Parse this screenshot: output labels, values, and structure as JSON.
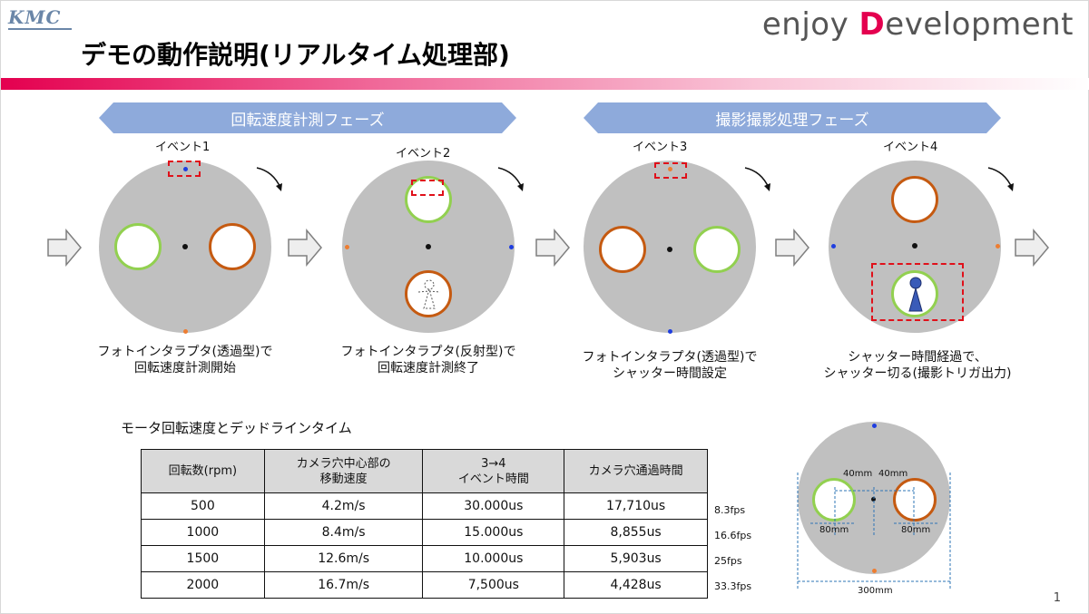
{
  "header": {
    "logo": "KMC",
    "brand_prefix": "enjoy ",
    "brand_d": "D",
    "brand_suffix": "evelopment",
    "title": "デモの動作説明(リアルタイム処理部)"
  },
  "phases": [
    "回転速度計測フェーズ",
    "撮影撮影処理フェーズ"
  ],
  "events": [
    {
      "label": "イベント1",
      "caption1": "フォトインタラプタ(透過型)で",
      "caption2": "回転速度計測開始"
    },
    {
      "label": "イベント2",
      "caption1": "フォトインタラプタ(反射型)で",
      "caption2": "回転速度計測終了"
    },
    {
      "label": "イベント3",
      "caption1": "フォトインタラプタ(透過型)で",
      "caption2": "シャッター時間設定"
    },
    {
      "label": "イベント4",
      "caption1": "シャッター時間経過で、",
      "caption2": "シャッター切る(撮影トリガ出力)"
    }
  ],
  "table": {
    "subtitle": "モータ回転速度とデッドラインタイム",
    "headers": [
      [
        "回転数(rpm)",
        ""
      ],
      [
        "カメラ穴中心部の",
        "移動速度"
      ],
      [
        "3→4",
        "イベント時間"
      ],
      [
        "カメラ穴通過時間",
        ""
      ]
    ],
    "rows": [
      {
        "rpm": "500",
        "speed": "4.2m/s",
        "event": "30.000us",
        "pass": "17,710us",
        "fps": "8.3fps"
      },
      {
        "rpm": "1000",
        "speed": "8.4m/s",
        "event": "15.000us",
        "pass": "8,855us",
        "fps": "16.6fps"
      },
      {
        "rpm": "1500",
        "speed": "12.6m/s",
        "event": "10.000us",
        "pass": "5,903us",
        "fps": "25fps"
      },
      {
        "rpm": "2000",
        "speed": "16.7m/s",
        "event": "7,500us",
        "pass": "4,428us",
        "fps": "33.3fps"
      }
    ]
  },
  "dims": {
    "d1": "40mm",
    "d2": "40mm",
    "h1": "80mm",
    "h2": "80mm",
    "total": "300mm"
  },
  "page_number": "1",
  "colors": {
    "accent": "#e4004f",
    "phase": "#8eaadb",
    "disk": "#c0c0c0",
    "hole_green": "#92d050",
    "hole_orange": "#c55a11"
  }
}
